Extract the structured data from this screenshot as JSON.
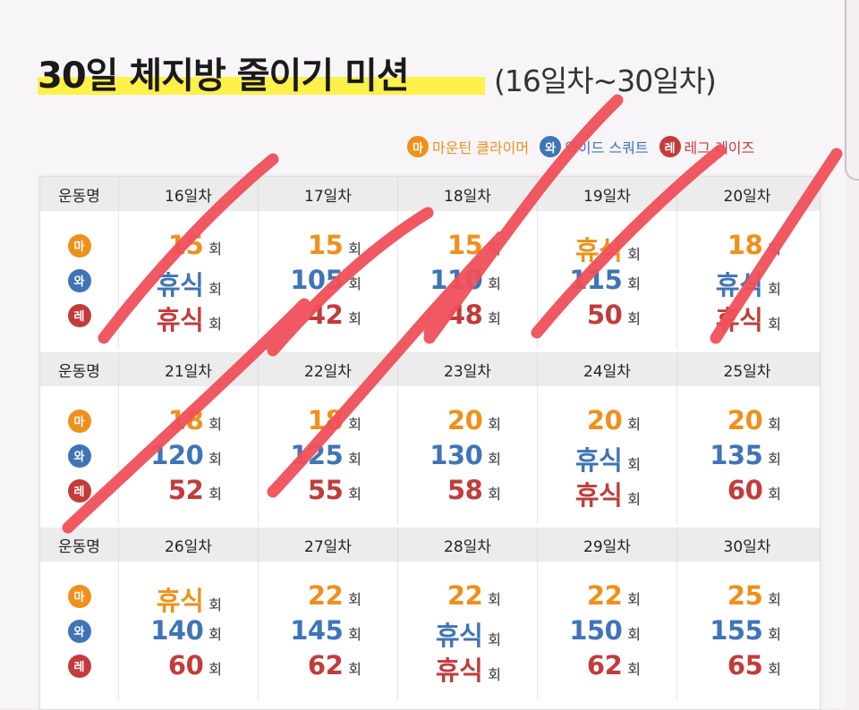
{
  "title": "30일 체지방 줄이기 미션",
  "subtitle": "(16일차~30일차)",
  "legend": [
    {
      "badge": "마",
      "label": "마운틴 클라이머",
      "color": "#f0901a"
    },
    {
      "badge": "와",
      "label": "와이드 스쿼트",
      "color": "#3f74b8"
    },
    {
      "badge": "레",
      "label": "레그 레이즈",
      "color": "#c33b3b"
    }
  ],
  "exercise_badges": [
    "마",
    "와",
    "레"
  ],
  "header_label": "운동명",
  "unit": "회",
  "weeks": [
    {
      "days": [
        {
          "day": "16일차",
          "values": [
            "15",
            "휴식",
            "휴식"
          ]
        },
        {
          "day": "17일차",
          "values": [
            "15",
            "105",
            "42"
          ]
        },
        {
          "day": "18일차",
          "values": [
            "15",
            "110",
            "48"
          ]
        },
        {
          "day": "19일차",
          "values": [
            "휴식",
            "115",
            "50"
          ]
        },
        {
          "day": "20일차",
          "values": [
            "18",
            "휴식",
            "휴식"
          ]
        }
      ]
    },
    {
      "days": [
        {
          "day": "21일차",
          "values": [
            "18",
            "120",
            "52"
          ]
        },
        {
          "day": "22일차",
          "values": [
            "18",
            "125",
            "55"
          ]
        },
        {
          "day": "23일차",
          "values": [
            "20",
            "130",
            "58"
          ]
        },
        {
          "day": "24일차",
          "values": [
            "20",
            "휴식",
            "휴식"
          ]
        },
        {
          "day": "25일차",
          "values": [
            "20",
            "135",
            "60"
          ]
        }
      ]
    },
    {
      "days": [
        {
          "day": "26일차",
          "values": [
            "휴식",
            "140",
            "60"
          ]
        },
        {
          "day": "27일차",
          "values": [
            "22",
            "145",
            "62"
          ]
        },
        {
          "day": "28일차",
          "values": [
            "22",
            "휴식",
            "휴식"
          ]
        },
        {
          "day": "29일차",
          "values": [
            "22",
            "150",
            "62"
          ]
        },
        {
          "day": "30일차",
          "values": [
            "25",
            "155",
            "65"
          ]
        }
      ]
    }
  ],
  "colors": {
    "mountain": "#f0901a",
    "wide": "#3f74b8",
    "leg": "#c33b3b",
    "marker": "#f0505a",
    "highlight": "#fff04a"
  }
}
